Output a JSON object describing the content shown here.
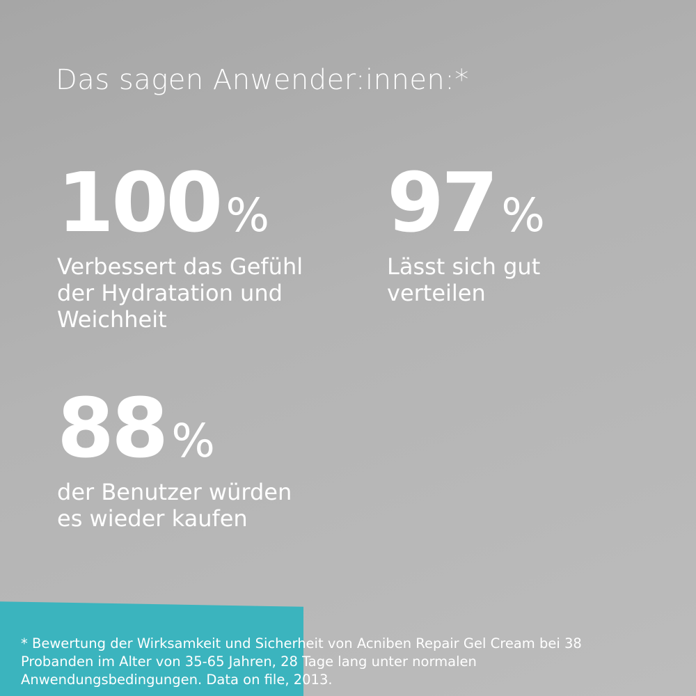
{
  "title": "Das sagen Anwender:innen:*",
  "stats": [
    {
      "number": "100",
      "unit": "%",
      "label": [
        "Verbessert das Gefühl",
        "der Hydratation und",
        "Weichheit"
      ]
    },
    {
      "number": "97",
      "unit": "%",
      "label": [
        "Lässt sich gut",
        "verteilen"
      ]
    },
    {
      "number": "88",
      "unit": "%",
      "label": [
        "der Benutzer würden",
        "es wieder kaufen"
      ]
    }
  ],
  "footnote": [
    "* Bewertung der Wirksamkeit und Sicherheit von Acniben Repair Gel Cream bei 38",
    "Probanden im Alter von 35-65 Jahren, 28 Tage lang unter normalen",
    "Anwendungsbedingungen. Data on file, 2013."
  ]
}
